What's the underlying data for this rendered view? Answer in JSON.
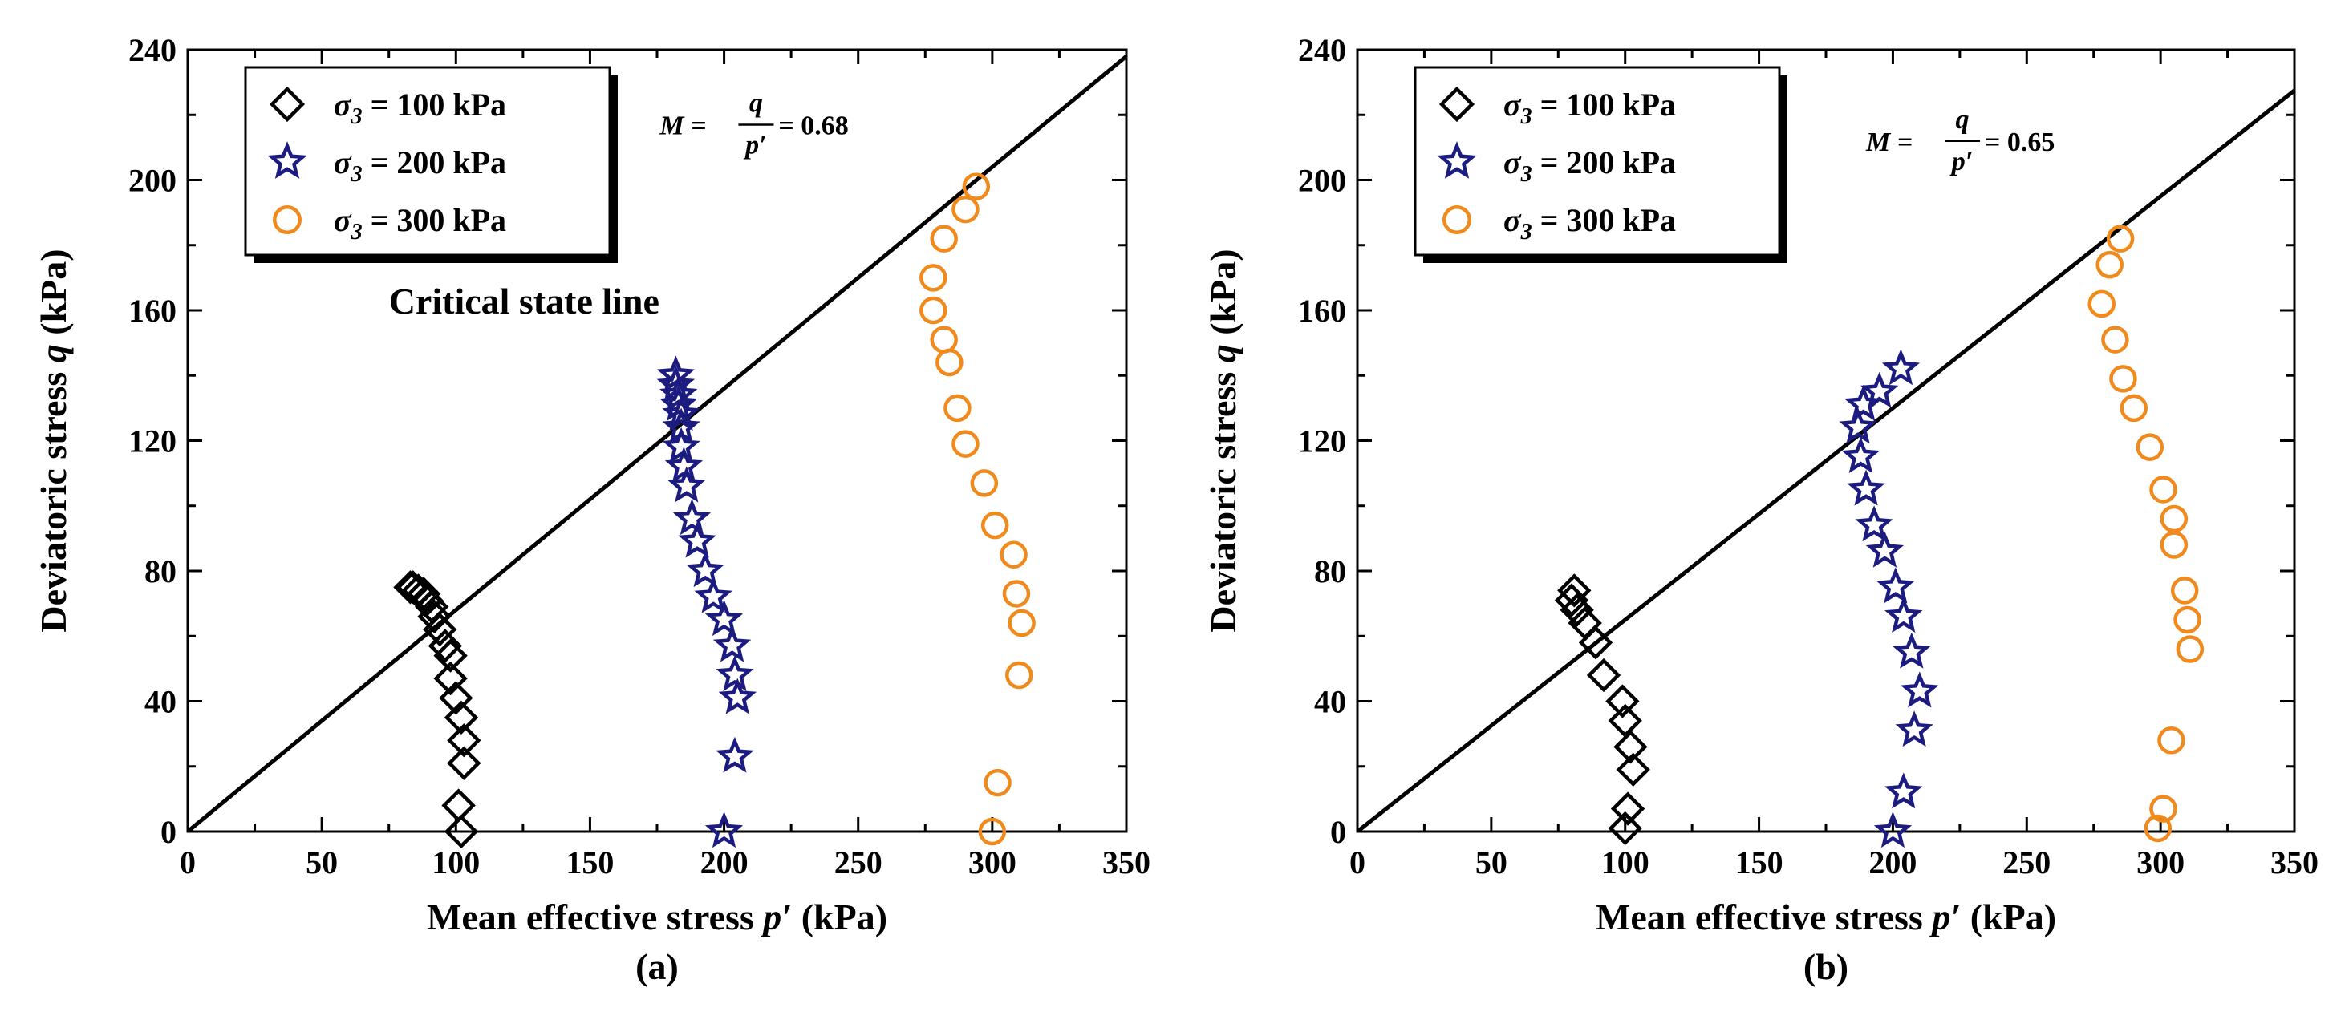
{
  "chart_data": [
    {
      "type": "scatter",
      "panel_label": "(a)",
      "xlabel_main": "Mean effective stress ",
      "xlabel_var": "p′",
      "xlabel_unit": " (kPa)",
      "ylabel_main": "Deviatoric stress ",
      "ylabel_var": "q",
      "ylabel_unit": " (kPa)",
      "xlim": [
        0,
        350
      ],
      "ylim": [
        0,
        240
      ],
      "xticks": [
        0,
        50,
        100,
        150,
        200,
        250,
        300,
        350
      ],
      "yticks": [
        0,
        40,
        80,
        120,
        160,
        200,
        240
      ],
      "legend_position": "top-left",
      "annotation": {
        "lhs": "M = ",
        "num": "q",
        "den": "p′",
        "rhs": " = 0.68",
        "data_x": 185,
        "data_y": 217
      },
      "csl_label": {
        "text": "Critical state line",
        "data_x": 75,
        "data_y": 159
      },
      "line": {
        "slope": 0.68,
        "x_range": [
          0,
          350
        ]
      },
      "series": [
        {
          "name_sym": "σ",
          "name_sub": "3",
          "name_rest": " = 100 kPa",
          "marker": "diamond",
          "color": "#000000",
          "x": [
            102,
            101,
            103,
            103,
            102,
            100,
            98,
            98,
            96,
            94,
            92,
            91,
            89,
            88,
            86,
            84,
            83
          ],
          "y": [
            0,
            8,
            21,
            28,
            35,
            41,
            47,
            54,
            57,
            62,
            66,
            69,
            71,
            73,
            74,
            75,
            75
          ]
        },
        {
          "name_sym": "σ",
          "name_sub": "3",
          "name_rest": " = 200 kPa",
          "marker": "star",
          "color": "#1c1c80",
          "x": [
            200,
            204,
            205,
            204,
            203,
            200,
            196,
            193,
            190,
            188,
            186,
            185,
            184,
            184,
            184,
            183,
            183,
            182,
            182
          ],
          "y": [
            0,
            23,
            41,
            48,
            57,
            65,
            72,
            80,
            89,
            96,
            106,
            112,
            118,
            124,
            128,
            131,
            134,
            137,
            140
          ]
        },
        {
          "name_sym": "σ",
          "name_sub": "3",
          "name_rest": " = 300 kPa",
          "marker": "circle",
          "color": "#f08a1c",
          "x": [
            300,
            302,
            310,
            311,
            309,
            308,
            301,
            297,
            290,
            287,
            284,
            282,
            278,
            278,
            282,
            290,
            294
          ],
          "y": [
            0,
            15,
            48,
            64,
            73,
            85,
            94,
            107,
            119,
            130,
            144,
            151,
            160,
            170,
            182,
            191,
            198
          ]
        }
      ]
    },
    {
      "type": "scatter",
      "panel_label": "(b)",
      "xlabel_main": "Mean effective stress ",
      "xlabel_var": "p′",
      "xlabel_unit": " (kPa)",
      "ylabel_main": "Deviatoric stress ",
      "ylabel_var": "q",
      "ylabel_unit": " (kPa)",
      "xlim": [
        0,
        350
      ],
      "ylim": [
        0,
        240
      ],
      "xticks": [
        0,
        50,
        100,
        150,
        200,
        250,
        300,
        350
      ],
      "yticks": [
        0,
        40,
        80,
        120,
        160,
        200,
        240
      ],
      "legend_position": "top-left",
      "annotation": {
        "lhs": "M = ",
        "num": "q",
        "den": "p′",
        "rhs": " = 0.65",
        "data_x": 190,
        "data_y": 212
      },
      "csl_label": null,
      "line": {
        "slope": 0.65,
        "x_range": [
          0,
          350
        ]
      },
      "series": [
        {
          "name_sym": "σ",
          "name_sub": "3",
          "name_rest": " = 100 kPa",
          "marker": "diamond",
          "color": "#000000",
          "x": [
            100,
            101,
            103,
            102,
            100,
            99,
            92,
            89,
            85,
            82,
            80,
            81
          ],
          "y": [
            1,
            7,
            19,
            26,
            34,
            40,
            48,
            58,
            64,
            68,
            71,
            74
          ]
        },
        {
          "name_sym": "σ",
          "name_sub": "3",
          "name_rest": " = 200 kPa",
          "marker": "star",
          "color": "#1c1c80",
          "x": [
            200,
            204,
            208,
            210,
            207,
            204,
            201,
            197,
            193,
            190,
            188,
            187,
            189,
            195,
            203
          ],
          "y": [
            0,
            12,
            31,
            43,
            55,
            66,
            75,
            86,
            94,
            105,
            115,
            124,
            131,
            135,
            142
          ]
        },
        {
          "name_sym": "σ",
          "name_sub": "3",
          "name_rest": " = 300 kPa",
          "marker": "circle",
          "color": "#f08a1c",
          "x": [
            299,
            301,
            304,
            311,
            310,
            309,
            305,
            305,
            301,
            296,
            290,
            286,
            283,
            278,
            281,
            285
          ],
          "y": [
            1,
            7,
            28,
            56,
            65,
            74,
            88,
            96,
            105,
            118,
            130,
            139,
            151,
            162,
            174,
            182
          ]
        }
      ]
    }
  ]
}
